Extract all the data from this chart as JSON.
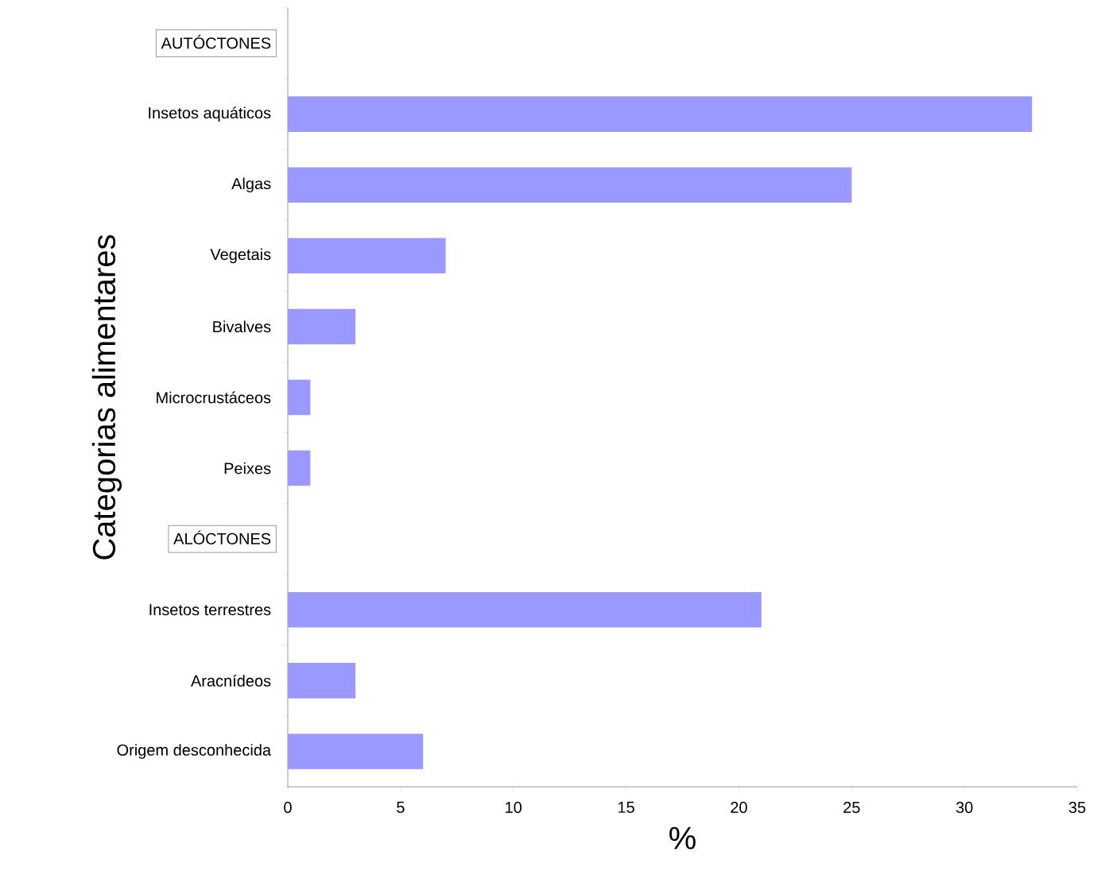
{
  "chart_data": {
    "type": "bar",
    "orientation": "horizontal",
    "categories": [
      "AUTÓCTONES",
      "Insetos aquáticos",
      "Algas",
      "Vegetais",
      "Bivalves",
      "Microcrustáceos",
      "Peixes",
      "ALÓCTONES",
      "Insetos terrestres",
      "Aracnídeos",
      "Origem desconhecida"
    ],
    "values": [
      null,
      33,
      25,
      7,
      3,
      1,
      1,
      null,
      21,
      3,
      6
    ],
    "color": "#9999ff",
    "xlim": [
      0,
      35
    ],
    "xticks": [
      0,
      5,
      10,
      15,
      20,
      25,
      30,
      35
    ],
    "xlabel": "%",
    "ylabel": "Categorias alimentares",
    "grid": false
  }
}
